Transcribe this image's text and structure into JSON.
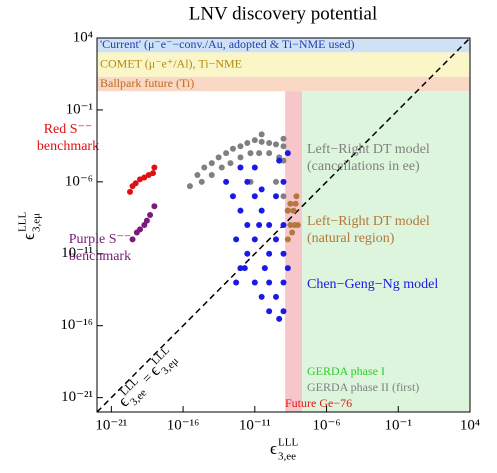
{
  "chart_data": {
    "type": "scatter",
    "title": "LNV discovery potential",
    "log_x": true,
    "log_y": true,
    "x_label": {
      "symbol": "ϵ",
      "subscript": "3,ee",
      "superscript": "LLL"
    },
    "y_label": {
      "symbol": "ϵ",
      "subscript": "3,eμ",
      "superscript": "LLL"
    },
    "diagonal_label": {
      "left": {
        "symbol": "ϵ",
        "subscript": "3,ee",
        "superscript": "LLL"
      },
      "relation": "=",
      "right": {
        "symbol": "ϵ",
        "subscript": "3,eμ",
        "superscript": "LLL"
      }
    },
    "xlim": [
      1e-22,
      10000
    ],
    "ylim": [
      1e-22,
      10000
    ],
    "xticks": [
      {
        "value": 1e-21,
        "label": "10⁻²¹"
      },
      {
        "value": 1e-16,
        "label": "10⁻¹⁶"
      },
      {
        "value": 1e-11,
        "label": "10⁻¹¹"
      },
      {
        "value": 1e-06,
        "label": "10⁻⁶"
      },
      {
        "value": 0.1,
        "label": "10⁻¹"
      },
      {
        "value": 10000,
        "label": "10⁴"
      }
    ],
    "yticks": [
      {
        "value": 1e-21,
        "label": "10⁻²¹"
      },
      {
        "value": 1e-16,
        "label": "10⁻¹⁶"
      },
      {
        "value": 1e-11,
        "label": "10⁻¹¹"
      },
      {
        "value": 1e-06,
        "label": "10⁻⁶"
      },
      {
        "value": 0.1,
        "label": "10⁻¹"
      },
      {
        "value": 10000,
        "label": "10⁴"
      }
    ],
    "horizontal_regions": [
      {
        "name": "'Current' (μ⁻e⁻−conv./Au, adopted & Ti−NME used)",
        "color": "#cfe2f5",
        "text_color": "#1f3fb0",
        "ylim": [
          1000,
          10000
        ]
      },
      {
        "name": "COMET (μ⁻e⁺/Al), Ti−NME",
        "color": "#fbf6c8",
        "text_color": "#b08a10",
        "ylim": [
          20,
          1000
        ]
      },
      {
        "name": "Ballpark future (Ti)",
        "color": "#f9d8c6",
        "text_color": "#c06a1a",
        "ylim": [
          2,
          20
        ]
      }
    ],
    "vertical_regions": [
      {
        "name": "Future Ge−76",
        "color": "#f6c6cb",
        "text_color": "#e01818",
        "xlim": [
          1.3e-09,
          2e-08
        ]
      },
      {
        "name": "GERDA phase I",
        "color": "#dcf5dc",
        "text_color": "#2ccc2c",
        "xlim": [
          2e-08,
          10000
        ]
      }
    ],
    "annotations": [
      {
        "text": "GERDA phase II (first)",
        "color": "#808080"
      }
    ],
    "series": [
      {
        "name": "Left−Right DT model\n(cancellations in ee)",
        "color": "#808080",
        "x": [
          1e-15,
          3e-15,
          1e-14,
          3e-14,
          1e-13,
          3e-13,
          1e-12,
          3e-12,
          1e-11,
          3e-11,
          1e-10,
          3e-10,
          1e-09,
          2e-15,
          1e-14,
          5e-14,
          2e-13,
          1e-12,
          5e-12,
          2e-11,
          1e-10,
          5e-10,
          1e-09,
          3e-10,
          1e-09,
          5e-12,
          3e-16,
          1e-09,
          3e-11
        ],
        "values": [
          3e-06,
          1e-05,
          2e-05,
          5e-05,
          0.0001,
          0.0002,
          0.0003,
          0.0005,
          0.0008,
          0.0006,
          0.0005,
          0.0004,
          0.0003,
          1e-06,
          3e-06,
          1e-05,
          2e-05,
          5e-05,
          0.0001,
          0.0001,
          0.0001,
          5e-05,
          3e-05,
          1e-06,
          1e-07,
          1e-06,
          5e-07,
          0.001,
          0.002
        ]
      },
      {
        "name": "Chen−Geng−Ng model",
        "color": "#1a1ae6",
        "x": [
          1e-12,
          3e-12,
          1e-11,
          3e-11,
          1e-10,
          3e-10,
          1e-09,
          2e-09,
          1e-10,
          3e-10,
          1e-09,
          5e-10,
          1e-11,
          3e-12,
          1e-12,
          3e-13,
          1e-13,
          5e-13,
          2e-12,
          1e-11,
          5e-11,
          1e-10,
          2e-09,
          1e-09,
          2e-09,
          5e-10,
          1e-11,
          3e-10,
          2e-11,
          1e-09,
          3e-12,
          1e-12,
          3e-11,
          1e-10,
          5e-13,
          3e-11,
          1e-09
        ],
        "values": [
          1e-05,
          1e-06,
          1e-07,
          1e-08,
          1e-09,
          1e-10,
          1e-11,
          1e-12,
          1e-13,
          1e-14,
          1e-15,
          3e-16,
          1e-10,
          1e-09,
          1e-08,
          1e-07,
          1e-06,
          1e-10,
          1e-12,
          1e-13,
          1e-12,
          1e-11,
          1e-08,
          1e-06,
          0.0001,
          3e-05,
          1e-05,
          1e-07,
          1e-09,
          1e-09,
          1e-11,
          1e-12,
          1e-14,
          1e-15,
          1e-13,
          3e-07,
          1e-13
        ]
      },
      {
        "name": "Left−Right DT model\n(natural region)",
        "color": "#b4783a",
        "x": [
          2e-09,
          3e-09,
          5e-09,
          8e-09,
          3e-09,
          6e-09,
          4e-09,
          7e-09,
          2e-09,
          1e-08
        ],
        "values": [
          1e-10,
          1e-09,
          1e-08,
          1e-07,
          3e-08,
          1e-09,
          3e-10,
          3e-08,
          1e-08,
          1e-09
        ]
      },
      {
        "name": "Red S⁻⁻\nbenchmark",
        "color": "#e01010",
        "x": [
          2e-20,
          3e-20,
          5e-20,
          1e-19,
          2e-19,
          4e-19,
          1e-18,
          8e-19
        ],
        "values": [
          2e-07,
          5e-07,
          8e-07,
          1.5e-06,
          2e-06,
          3e-06,
          1e-05,
          4e-06
        ]
      },
      {
        "name": "Purple S⁻⁻\nbenchmark",
        "color": "#7a1a7a",
        "x": [
          3e-20,
          6e-20,
          1e-19,
          2e-19,
          3e-19,
          5e-19,
          1e-18
        ],
        "values": [
          1e-10,
          3e-10,
          5e-10,
          1e-09,
          2e-09,
          5e-09,
          2e-08
        ]
      }
    ]
  }
}
